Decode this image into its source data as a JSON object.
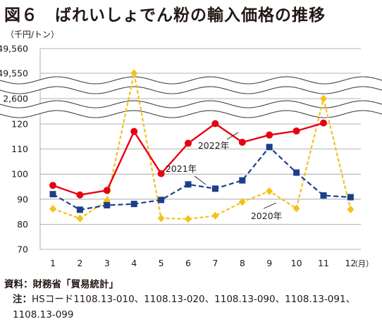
{
  "title": "図６　ばれいしょでん粉の輸入価格の推移",
  "unit": "（千円/トン）",
  "source": "資料：財務省「貿易統計」",
  "note_label": "注：",
  "note_text": "HSコード1108.13-010、1108.13-020、1108.13-090、1108.13-091、1108.13-099",
  "chart_data": {
    "type": "line",
    "title": "図６　ばれいしょでん粉の輸入価格の推移",
    "ylabel": "（千円/トン）",
    "xlabel": "",
    "x_unit": "（月）",
    "categories": [
      "1",
      "2",
      "3",
      "4",
      "5",
      "6",
      "7",
      "8",
      "9",
      "10",
      "11",
      "12"
    ],
    "ylim": [
      70,
      49560
    ],
    "axis_break": true,
    "y_tick_labels": [
      "70",
      "80",
      "90",
      "100",
      "110",
      "120",
      "2,600",
      "49,550",
      "49,560"
    ],
    "grid": true,
    "series": [
      {
        "name": "2022年",
        "color": "#e60012",
        "style": "solid",
        "marker": "circle",
        "values": [
          95.5,
          91.7,
          93.5,
          117.0,
          100.2,
          112.3,
          121.3,
          112.7,
          115.6,
          117.2,
          123.5,
          null
        ]
      },
      {
        "name": "2021年",
        "color": "#1d3f8b",
        "style": "dashed",
        "marker": "square",
        "values": [
          92.0,
          85.8,
          87.6,
          88.1,
          89.7,
          95.9,
          94.2,
          97.5,
          110.8,
          100.6,
          91.5,
          90.8
        ]
      },
      {
        "name": "2020年",
        "color": "#f4c21b",
        "style": "dashed",
        "marker": "diamond",
        "values": [
          86.2,
          82.3,
          89.5,
          49550,
          82.4,
          82.1,
          83.4,
          88.9,
          93.2,
          86.3,
          2600,
          85.9
        ]
      }
    ]
  }
}
